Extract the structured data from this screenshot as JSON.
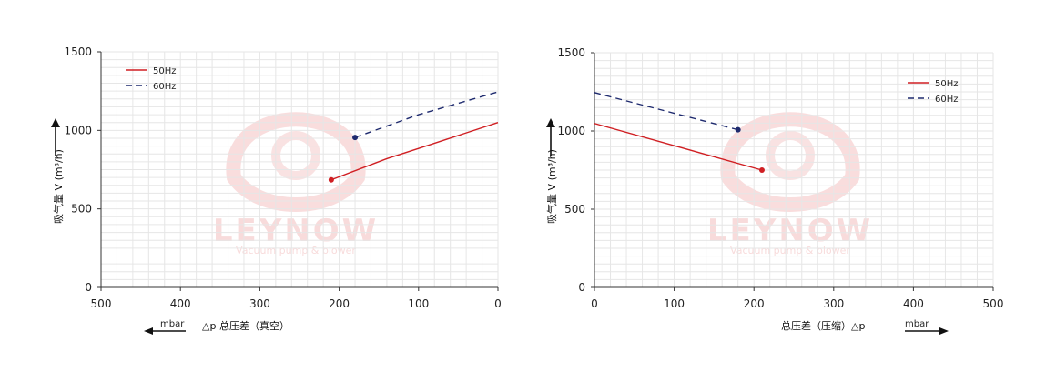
{
  "watermark": {
    "brand": "LEYNOW",
    "tagline": "Vacuum pump & blower"
  },
  "colors": {
    "series_50hz": "#d01f23",
    "series_60hz": "#1e2a6e",
    "grid": "#e6e6e6",
    "axis": "#333333",
    "watermark": "#f7d5d5"
  },
  "chart_data": [
    {
      "type": "line",
      "ylabel": "吸气量 V (m³/h)",
      "xlabel": "△p  总压差（真空）",
      "unit_label": "mbar",
      "unit_arrow": "left",
      "xlim": [
        500,
        0
      ],
      "ylim": [
        0,
        1500
      ],
      "x_reversed": true,
      "x_ticks": [
        500,
        400,
        300,
        200,
        100,
        0
      ],
      "y_ticks": [
        0,
        500,
        1000,
        1500
      ],
      "grid": true,
      "legend_position": "top-left",
      "series": [
        {
          "name": "50Hz",
          "style": "solid",
          "color": "#d01f23",
          "points": [
            [
              210,
              685
            ],
            [
              140,
              820
            ],
            [
              100,
              885
            ],
            [
              0,
              1050
            ]
          ]
        },
        {
          "name": "60Hz",
          "style": "dashed",
          "color": "#1e2a6e",
          "points": [
            [
              180,
              955
            ],
            [
              100,
              1100
            ],
            [
              0,
              1245
            ]
          ]
        }
      ]
    },
    {
      "type": "line",
      "ylabel": "吸气量 V (m³/h)",
      "xlabel": "总压差（压缩）△p",
      "unit_label": "mbar",
      "unit_arrow": "right",
      "xlim": [
        0,
        500
      ],
      "ylim": [
        0,
        1500
      ],
      "x_reversed": false,
      "x_ticks": [
        0,
        100,
        200,
        300,
        400,
        500
      ],
      "y_ticks": [
        0,
        500,
        1000,
        1500
      ],
      "grid": true,
      "legend_position": "top-right",
      "series": [
        {
          "name": "50Hz",
          "style": "solid",
          "color": "#d01f23",
          "points": [
            [
              0,
              1048
            ],
            [
              210,
              750
            ]
          ]
        },
        {
          "name": "60Hz",
          "style": "dashed",
          "color": "#1e2a6e",
          "points": [
            [
              0,
              1245
            ],
            [
              180,
              1008
            ]
          ]
        }
      ]
    }
  ]
}
